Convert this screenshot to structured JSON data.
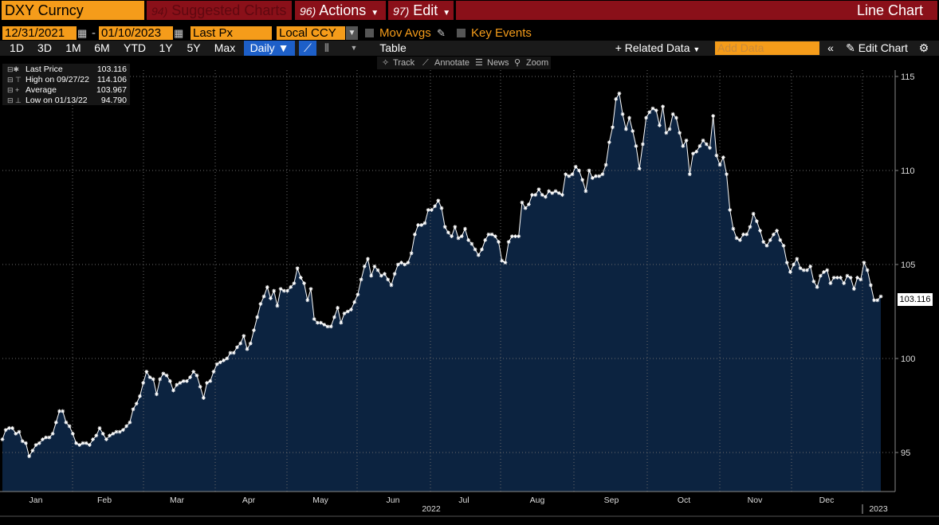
{
  "header": {
    "ticker": "DXY Curncy",
    "suggested_num": "94)",
    "suggested_label": "Suggested Charts",
    "actions_num": "96)",
    "actions_label": "Actions",
    "edit_num": "97)",
    "edit_label": "Edit",
    "chart_type": "Line Chart"
  },
  "controls": {
    "start_date": "12/31/2021",
    "end_date": "01/10/2023",
    "dash": "-",
    "field": "Last Px",
    "currency": "Local CCY",
    "mov_avgs": "Mov Avgs",
    "key_events": "Key Events"
  },
  "periods": [
    "1D",
    "3D",
    "1M",
    "6M",
    "YTD",
    "1Y",
    "5Y",
    "Max"
  ],
  "toolbar": {
    "frequency": "Daily",
    "table": "Table",
    "related_data": "Related Data",
    "add_data_placeholder": "Add Data",
    "edit_chart": "Edit Chart"
  },
  "chart_tools": {
    "track": "Track",
    "annotate": "Annotate",
    "news": "News",
    "zoom": "Zoom"
  },
  "legend": {
    "last_label": "Last Price",
    "last_value": "103.116",
    "high_label": "High on 09/27/22",
    "high_value": "114.106",
    "avg_label": "Average",
    "avg_value": "103.967",
    "low_label": "Low on 01/13/22",
    "low_value": "94.790"
  },
  "colors": {
    "area_fill": "#0c2340",
    "line": "#ffffff",
    "accent": "#f59c1a",
    "title_bar": "#8a1019"
  },
  "chart_data": {
    "type": "area",
    "last_value_label": "103.116",
    "y_ticks": [
      95,
      100,
      105,
      110,
      115
    ],
    "ylim": [
      93,
      116
    ],
    "year_labels": [
      "2022",
      "2023"
    ],
    "month_labels": [
      "Jan",
      "Feb",
      "Mar",
      "Apr",
      "May",
      "Jun",
      "Jul",
      "Aug",
      "Sep",
      "Oct",
      "Nov",
      "Dec"
    ],
    "x_start": "2021-12-31",
    "x_end": "2023-01-10",
    "series": [
      {
        "name": "DXY Curncy",
        "values": [
          95.7,
          96.2,
          96.3,
          96.3,
          96.0,
          96.1,
          95.6,
          95.5,
          94.8,
          95.1,
          95.4,
          95.5,
          95.7,
          95.8,
          95.8,
          96.0,
          96.6,
          97.2,
          97.2,
          96.6,
          96.4,
          96.0,
          95.5,
          95.4,
          95.5,
          95.5,
          95.4,
          95.7,
          95.9,
          96.3,
          96.0,
          95.7,
          95.9,
          96.0,
          96.1,
          96.1,
          96.2,
          96.4,
          96.6,
          97.3,
          97.6,
          98.0,
          98.7,
          99.3,
          99.0,
          98.9,
          98.1,
          98.9,
          99.2,
          99.1,
          98.8,
          98.3,
          98.6,
          98.7,
          98.8,
          98.8,
          99.0,
          99.3,
          99.1,
          98.5,
          97.9,
          98.7,
          98.8,
          99.3,
          99.7,
          99.8,
          99.9,
          100.0,
          100.3,
          100.3,
          100.6,
          100.8,
          101.2,
          100.5,
          100.8,
          101.5,
          102.2,
          102.9,
          103.3,
          103.8,
          103.2,
          103.6,
          102.8,
          103.7,
          103.6,
          103.6,
          103.8,
          104.0,
          104.8,
          104.3,
          104.0,
          103.1,
          103.7,
          102.1,
          101.9,
          101.9,
          101.8,
          101.7,
          101.7,
          102.2,
          102.7,
          101.9,
          102.4,
          102.5,
          102.6,
          103.0,
          103.4,
          104.2,
          104.9,
          105.3,
          104.4,
          104.9,
          104.7,
          104.4,
          104.5,
          104.2,
          103.9,
          104.5,
          105.0,
          105.1,
          105.0,
          105.1,
          105.6,
          106.6,
          107.1,
          107.1,
          107.2,
          107.9,
          107.9,
          108.1,
          108.4,
          108.0,
          107.0,
          106.7,
          106.5,
          107.0,
          106.4,
          106.5,
          106.9,
          106.3,
          106.1,
          105.8,
          105.5,
          105.8,
          106.3,
          106.6,
          106.6,
          106.5,
          106.2,
          105.2,
          105.1,
          106.2,
          106.5,
          106.5,
          106.5,
          108.3,
          108.0,
          108.2,
          108.7,
          108.7,
          109.0,
          108.7,
          108.6,
          108.9,
          108.8,
          108.9,
          108.8,
          108.7,
          109.8,
          109.7,
          109.8,
          110.2,
          110.0,
          109.5,
          108.9,
          110.0,
          109.6,
          109.7,
          109.7,
          109.8,
          110.3,
          111.5,
          112.3,
          113.8,
          114.1,
          113.0,
          112.2,
          112.8,
          112.1,
          111.3,
          110.1,
          111.4,
          112.8,
          113.1,
          113.3,
          113.2,
          112.4,
          113.4,
          112.0,
          112.2,
          113.0,
          112.8,
          112.0,
          111.3,
          111.6,
          109.8,
          110.9,
          111.0,
          111.3,
          111.6,
          111.4,
          111.2,
          112.9,
          110.8,
          110.3,
          110.7,
          109.8,
          107.9,
          106.9,
          106.4,
          106.3,
          106.6,
          106.6,
          107.0,
          107.7,
          107.3,
          106.8,
          106.2,
          106.0,
          106.3,
          106.6,
          106.8,
          106.3,
          106.0,
          105.1,
          104.6,
          105.0,
          105.3,
          104.8,
          104.7,
          104.7,
          104.9,
          104.1,
          103.8,
          104.4,
          104.6,
          104.7,
          104.0,
          104.3,
          104.3,
          104.3,
          104.0,
          104.4,
          104.3,
          103.7,
          104.3,
          104.2,
          105.1,
          104.7,
          103.9,
          103.1,
          103.1,
          103.3
        ]
      }
    ]
  }
}
